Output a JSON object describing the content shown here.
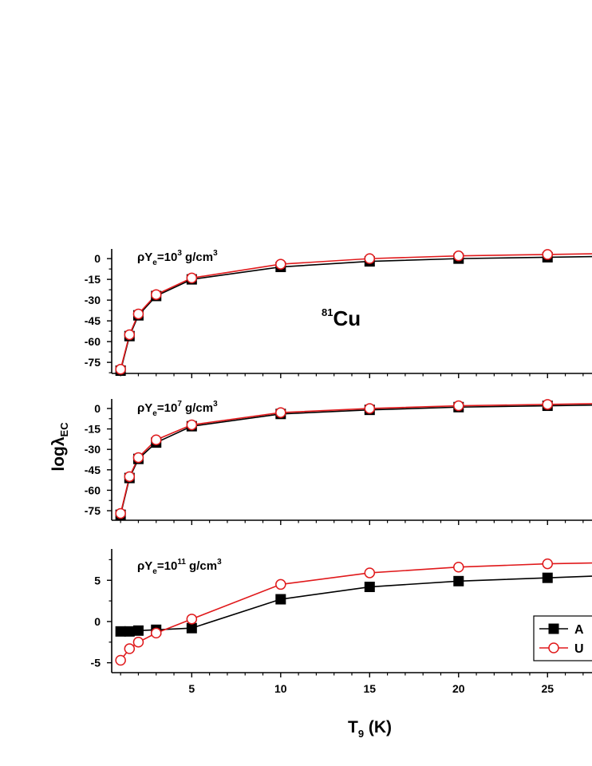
{
  "colors": {
    "series_a": "#000000",
    "series_u": "#e0191b"
  },
  "figure": {
    "nuclide_mass": "81",
    "nuclide_symbol": "Cu",
    "ylabel_main": "logλ",
    "ylabel_sub": "EC",
    "xlabel_main": "T",
    "xlabel_sub": "9",
    "xlabel_unit": " (K)"
  },
  "chart_data": [
    {
      "type": "line",
      "panel_label": {
        "prefix": "ρY",
        "sub": "e",
        "mid": "=10",
        "sup": "3",
        "unit": " g/cm",
        "unit_sup": "3"
      },
      "x_ticks": [
        5,
        10,
        15,
        20,
        25
      ],
      "y_ticks": [
        0,
        -15,
        -30,
        -45,
        -60,
        -75
      ],
      "xlim": [
        0.5,
        27.5
      ],
      "ylim": [
        -83,
        7
      ],
      "series": [
        {
          "name": "A",
          "marker": "filled-square",
          "x": [
            1,
            1.5,
            2,
            3,
            5,
            10,
            15,
            20,
            25,
            27.5
          ],
          "y": [
            -81,
            -56,
            -41,
            -27,
            -15,
            -6,
            -2,
            0,
            1,
            1.5
          ]
        },
        {
          "name": "U",
          "marker": "open-circle",
          "x": [
            1,
            1.5,
            2,
            3,
            5,
            10,
            15,
            20,
            25,
            27.5
          ],
          "y": [
            -80,
            -55,
            -40,
            -26,
            -14,
            -4,
            0,
            2,
            3,
            3.5
          ]
        }
      ]
    },
    {
      "type": "line",
      "panel_label": {
        "prefix": "ρY",
        "sub": "e",
        "mid": "=10",
        "sup": "7",
        "unit": " g/cm",
        "unit_sup": "3"
      },
      "x_ticks": [
        5,
        10,
        15,
        20,
        25
      ],
      "y_ticks": [
        0,
        -15,
        -30,
        -45,
        -60,
        -75
      ],
      "xlim": [
        0.5,
        27.5
      ],
      "ylim": [
        -82,
        7
      ],
      "series": [
        {
          "name": "A",
          "marker": "filled-square",
          "x": [
            1,
            1.5,
            2,
            3,
            5,
            10,
            15,
            20,
            25,
            27.5
          ],
          "y": [
            -78,
            -51,
            -37,
            -25,
            -13,
            -4,
            -1,
            1,
            2,
            2.5
          ]
        },
        {
          "name": "U",
          "marker": "open-circle",
          "x": [
            1,
            1.5,
            2,
            3,
            5,
            10,
            15,
            20,
            25,
            27.5
          ],
          "y": [
            -77,
            -50,
            -36,
            -23,
            -12,
            -3,
            0,
            2,
            3,
            3.5
          ]
        }
      ]
    },
    {
      "type": "line",
      "panel_label": {
        "prefix": "ρY",
        "sub": "e",
        "mid": "=10",
        "sup": "11",
        "unit": " g/cm",
        "unit_sup": "3"
      },
      "x_ticks": [
        5,
        10,
        15,
        20,
        25
      ],
      "y_ticks": [
        5,
        0,
        -5
      ],
      "xlim": [
        0.5,
        27.5
      ],
      "ylim": [
        -6.2,
        8.8
      ],
      "series": [
        {
          "name": "A",
          "marker": "filled-square",
          "x": [
            1,
            1.5,
            2,
            3,
            5,
            10,
            15,
            20,
            25,
            27.5
          ],
          "y": [
            -1.2,
            -1.2,
            -1.1,
            -1.0,
            -0.8,
            2.7,
            4.2,
            4.9,
            5.3,
            5.5
          ]
        },
        {
          "name": "U",
          "marker": "open-circle",
          "x": [
            1,
            1.5,
            2,
            3,
            5,
            10,
            15,
            20,
            25,
            27.5
          ],
          "y": [
            -4.7,
            -3.3,
            -2.5,
            -1.4,
            0.3,
            4.5,
            5.9,
            6.6,
            7.0,
            7.1
          ]
        }
      ]
    }
  ],
  "legend": [
    {
      "label": "A",
      "marker": "filled-square"
    },
    {
      "label": "U",
      "marker": "open-circle"
    }
  ]
}
